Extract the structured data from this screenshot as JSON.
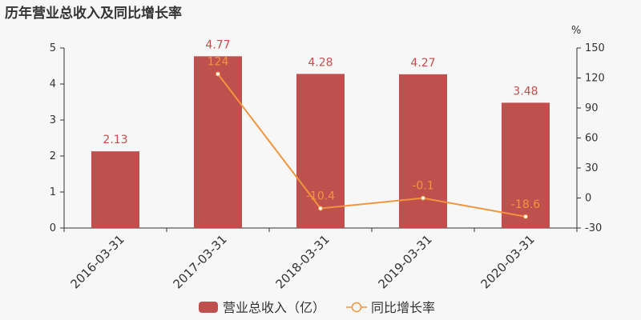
{
  "title": "历年营业总收入及同比增长率",
  "chart_data": {
    "type": "bar",
    "categories": [
      "2016-03-31",
      "2017-03-31",
      "2018-03-31",
      "2019-03-31",
      "2020-03-31"
    ],
    "series": [
      {
        "name": "营业总收入（亿）",
        "type": "bar",
        "axis": "left",
        "values": [
          2.13,
          4.77,
          4.28,
          4.27,
          3.48
        ],
        "labels": [
          "2.13",
          "4.77",
          "4.28",
          "4.27",
          "3.48"
        ],
        "color": "#c0504d"
      },
      {
        "name": "同比增长率",
        "type": "line",
        "axis": "right",
        "values": [
          null,
          124,
          -10.4,
          -0.1,
          -18.6
        ],
        "labels": [
          "",
          "124",
          "-10.4",
          "-0.1",
          "-18.6"
        ],
        "color": "#f0953e"
      }
    ],
    "y_left": {
      "ylim": [
        0,
        5
      ],
      "ticks": [
        "0",
        "1",
        "2",
        "3",
        "4",
        "5"
      ]
    },
    "y_right": {
      "ylim": [
        -30,
        150
      ],
      "ticks": [
        "-30",
        "0",
        "30",
        "60",
        "90",
        "120",
        "150"
      ],
      "unit": "%"
    },
    "grid": false,
    "legend_position": "bottom"
  }
}
